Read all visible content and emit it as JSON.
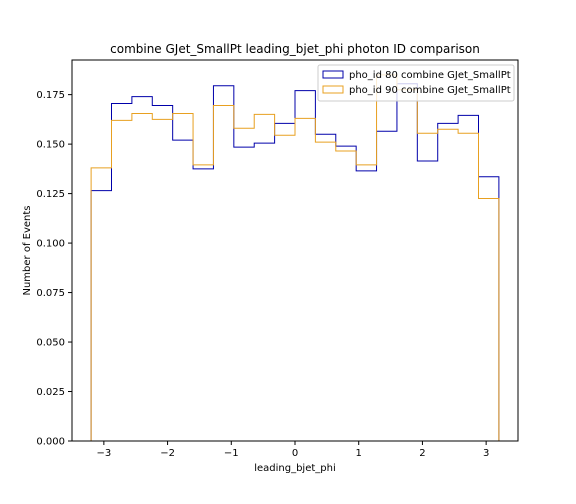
{
  "chart_data": {
    "type": "histogram-step",
    "title": "combine GJet_SmallPt leading_bjet_phi photon ID comparison",
    "xlabel": "leading_bjet_phi",
    "ylabel": "Number of Events",
    "xlim": [
      -3.5,
      3.5
    ],
    "ylim": [
      0.0,
      0.1925
    ],
    "xticks": [
      -3,
      -2,
      -1,
      0,
      1,
      2,
      3
    ],
    "xtick_labels": [
      "−3",
      "−2",
      "−1",
      "0",
      "1",
      "2",
      "3"
    ],
    "yticks": [
      0.0,
      0.025,
      0.05,
      0.075,
      0.1,
      0.125,
      0.15,
      0.175
    ],
    "ytick_labels": [
      "0.000",
      "0.025",
      "0.050",
      "0.075",
      "0.100",
      "0.125",
      "0.150",
      "0.175"
    ],
    "bin_edges": [
      -3.2,
      -2.88,
      -2.56,
      -2.24,
      -1.92,
      -1.6,
      -1.28,
      -0.96,
      -0.64,
      -0.32,
      0.0,
      0.32,
      0.64,
      0.96,
      1.28,
      1.6,
      1.92,
      2.24,
      2.56,
      2.88,
      3.2
    ],
    "legend_position": "top-right",
    "series": [
      {
        "name": "pho_id 80 combine GJet_SmallPt",
        "color": "#0000aa",
        "values": [
          0.1265,
          0.1705,
          0.174,
          0.1695,
          0.152,
          0.1375,
          0.1795,
          0.1485,
          0.1505,
          0.1605,
          0.177,
          0.155,
          0.149,
          0.1365,
          0.1565,
          0.1805,
          0.1415,
          0.1605,
          0.1645,
          0.1335
        ]
      },
      {
        "name": "pho_id 90 combine GJet_SmallPt",
        "color": "#e8a020",
        "values": [
          0.138,
          0.162,
          0.1655,
          0.1625,
          0.1655,
          0.1395,
          0.1695,
          0.158,
          0.165,
          0.1545,
          0.163,
          0.151,
          0.1465,
          0.1395,
          0.185,
          0.1775,
          0.1555,
          0.1575,
          0.1555,
          0.1225
        ]
      }
    ]
  }
}
